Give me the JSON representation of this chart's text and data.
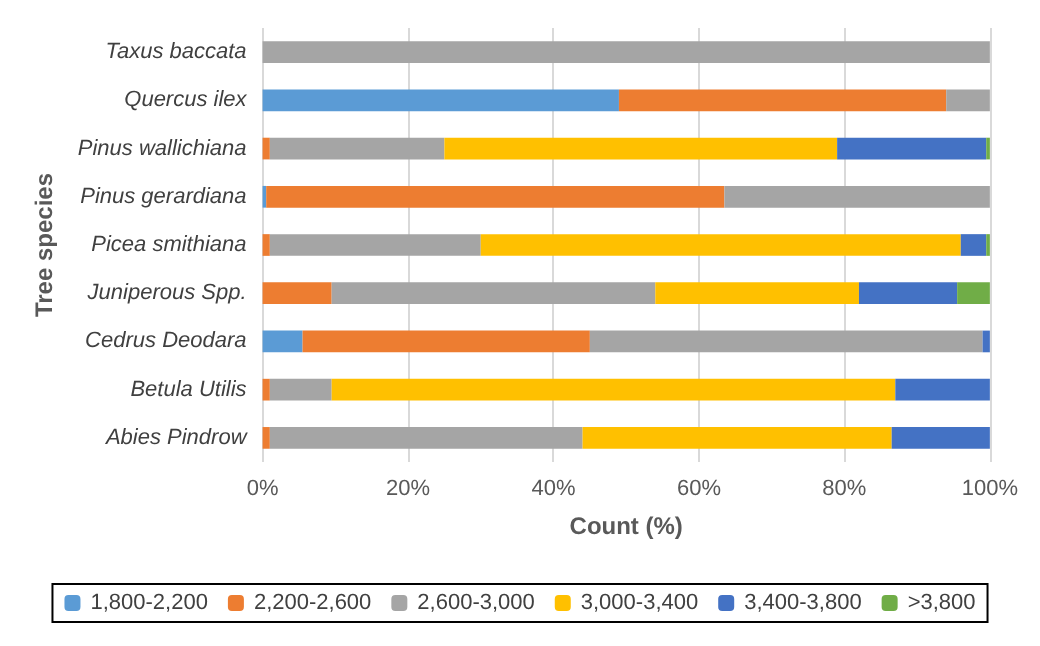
{
  "chart_data": {
    "type": "bar",
    "orientation": "horizontal",
    "stacked": true,
    "xlabel": "Count (%)",
    "ylabel": "Tree species",
    "categories": [
      "Taxus baccata",
      "Quercus ilex",
      "Pinus wallichiana",
      "Pinus gerardiana",
      "Picea smithiana",
      "Juniperous Spp.",
      "Cedrus Deodara",
      "Betula Utilis",
      "Abies Pindrow"
    ],
    "series": [
      {
        "name": "1,800-2,200",
        "color": "#5b9bd5",
        "values": [
          null,
          49,
          null,
          0.5,
          null,
          null,
          5.5,
          null,
          null
        ]
      },
      {
        "name": "2,200-2,600",
        "color": "#ed7d31",
        "values": [
          null,
          45,
          1,
          63,
          1,
          9.5,
          39.5,
          1,
          1
        ]
      },
      {
        "name": "2,600-3,000",
        "color": "#a5a5a5",
        "values": [
          100,
          6,
          24,
          36.5,
          29,
          44.5,
          54,
          8.5,
          43
        ]
      },
      {
        "name": "3,000-3,400",
        "color": "#ffc000",
        "values": [
          null,
          null,
          54,
          null,
          66,
          28,
          null,
          77.5,
          42.5
        ]
      },
      {
        "name": "3,400-3,800",
        "color": "#4472c4",
        "values": [
          null,
          null,
          20.5,
          null,
          3.5,
          13.5,
          1,
          13,
          13.5
        ]
      },
      {
        "name": ">3,800",
        "color": "#70ad47",
        "values": [
          null,
          null,
          0.5,
          null,
          0.5,
          4.5,
          null,
          null,
          null
        ]
      }
    ],
    "xlim": [
      0,
      100
    ],
    "xticks": [
      {
        "value": 0,
        "label": "0%"
      },
      {
        "value": 20,
        "label": "20%"
      },
      {
        "value": 40,
        "label": "40%"
      },
      {
        "value": 60,
        "label": "60%"
      },
      {
        "value": 80,
        "label": "80%"
      },
      {
        "value": 100,
        "label": "100%"
      }
    ],
    "grid": "x",
    "legend": "bottom"
  }
}
